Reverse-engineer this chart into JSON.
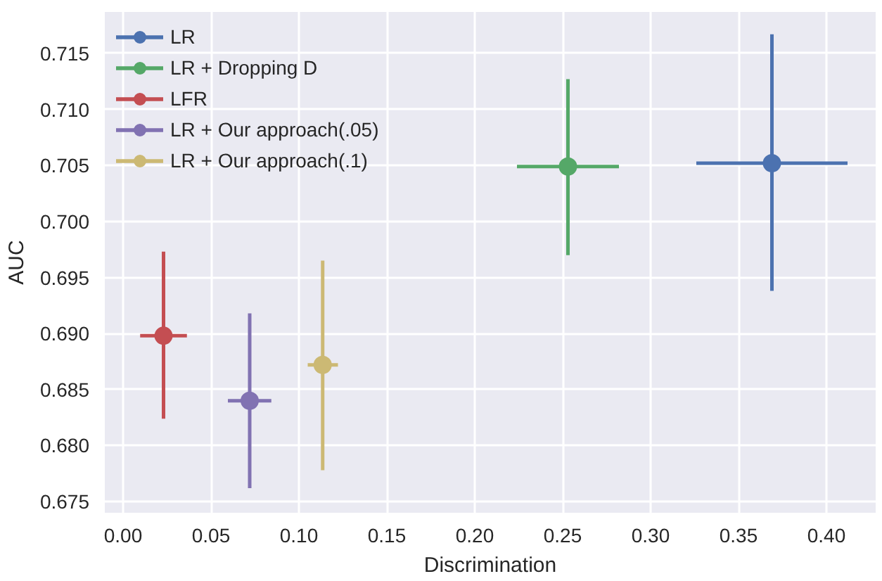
{
  "chart_data": {
    "type": "scatter",
    "xlabel": "Discrimination",
    "ylabel": "AUC",
    "series": [
      {
        "name": "LR",
        "color": "#4c72b0",
        "x": [
          0.369
        ],
        "values": [
          0.7052
        ],
        "errors": [
          [
            0.6938,
            0.7167
          ]
        ],
        "xerrors": [
          [
            0.326,
            0.412
          ]
        ]
      },
      {
        "name": "LR + Dropping D",
        "color": "#55a868",
        "x": [
          0.253
        ],
        "values": [
          0.7049
        ],
        "errors": [
          [
            0.697,
            0.7127
          ]
        ],
        "xerrors": [
          [
            0.224,
            0.282
          ]
        ]
      },
      {
        "name": "LFR",
        "color": "#c44e52",
        "x": [
          0.023
        ],
        "values": [
          0.6898
        ],
        "errors": [
          [
            0.6824,
            0.6973
          ]
        ],
        "xerrors": [
          [
            0.0097,
            0.0363
          ]
        ]
      },
      {
        "name": "LR + Our approach(.05)",
        "color": "#8172b2",
        "x": [
          0.072
        ],
        "values": [
          0.684
        ],
        "errors": [
          [
            0.6762,
            0.6918
          ]
        ],
        "xerrors": [
          [
            0.0596,
            0.0843
          ]
        ]
      },
      {
        "name": "LR + Our approach(.1)",
        "color": "#ccb974",
        "x": [
          0.1135
        ],
        "values": [
          0.6872
        ],
        "errors": [
          [
            0.6778,
            0.6965
          ]
        ],
        "xerrors": [
          [
            0.105,
            0.1222
          ]
        ]
      }
    ],
    "xlim": [
      -0.0104,
      0.428
    ],
    "ylim": [
      0.674,
      0.7187
    ],
    "xticks": [
      {
        "value": 0,
        "label": "0.00"
      },
      0.05,
      {
        "value": 0.1,
        "label": "0.10"
      },
      0.15,
      {
        "value": 0.2,
        "label": "0.20"
      },
      0.25,
      {
        "value": 0.3,
        "label": "0.30"
      },
      0.35,
      {
        "value": 0.4,
        "label": "0.40"
      }
    ],
    "yticks": [
      0.675,
      {
        "value": 0.68,
        "label": "0.680"
      },
      0.685,
      {
        "value": 0.69,
        "label": "0.690"
      },
      0.695,
      {
        "value": 0.7,
        "label": "0.700"
      },
      0.705,
      {
        "value": 0.71,
        "label": "0.710"
      },
      0.715
    ],
    "grid": true,
    "legend": "top left",
    "marker": "circle"
  }
}
